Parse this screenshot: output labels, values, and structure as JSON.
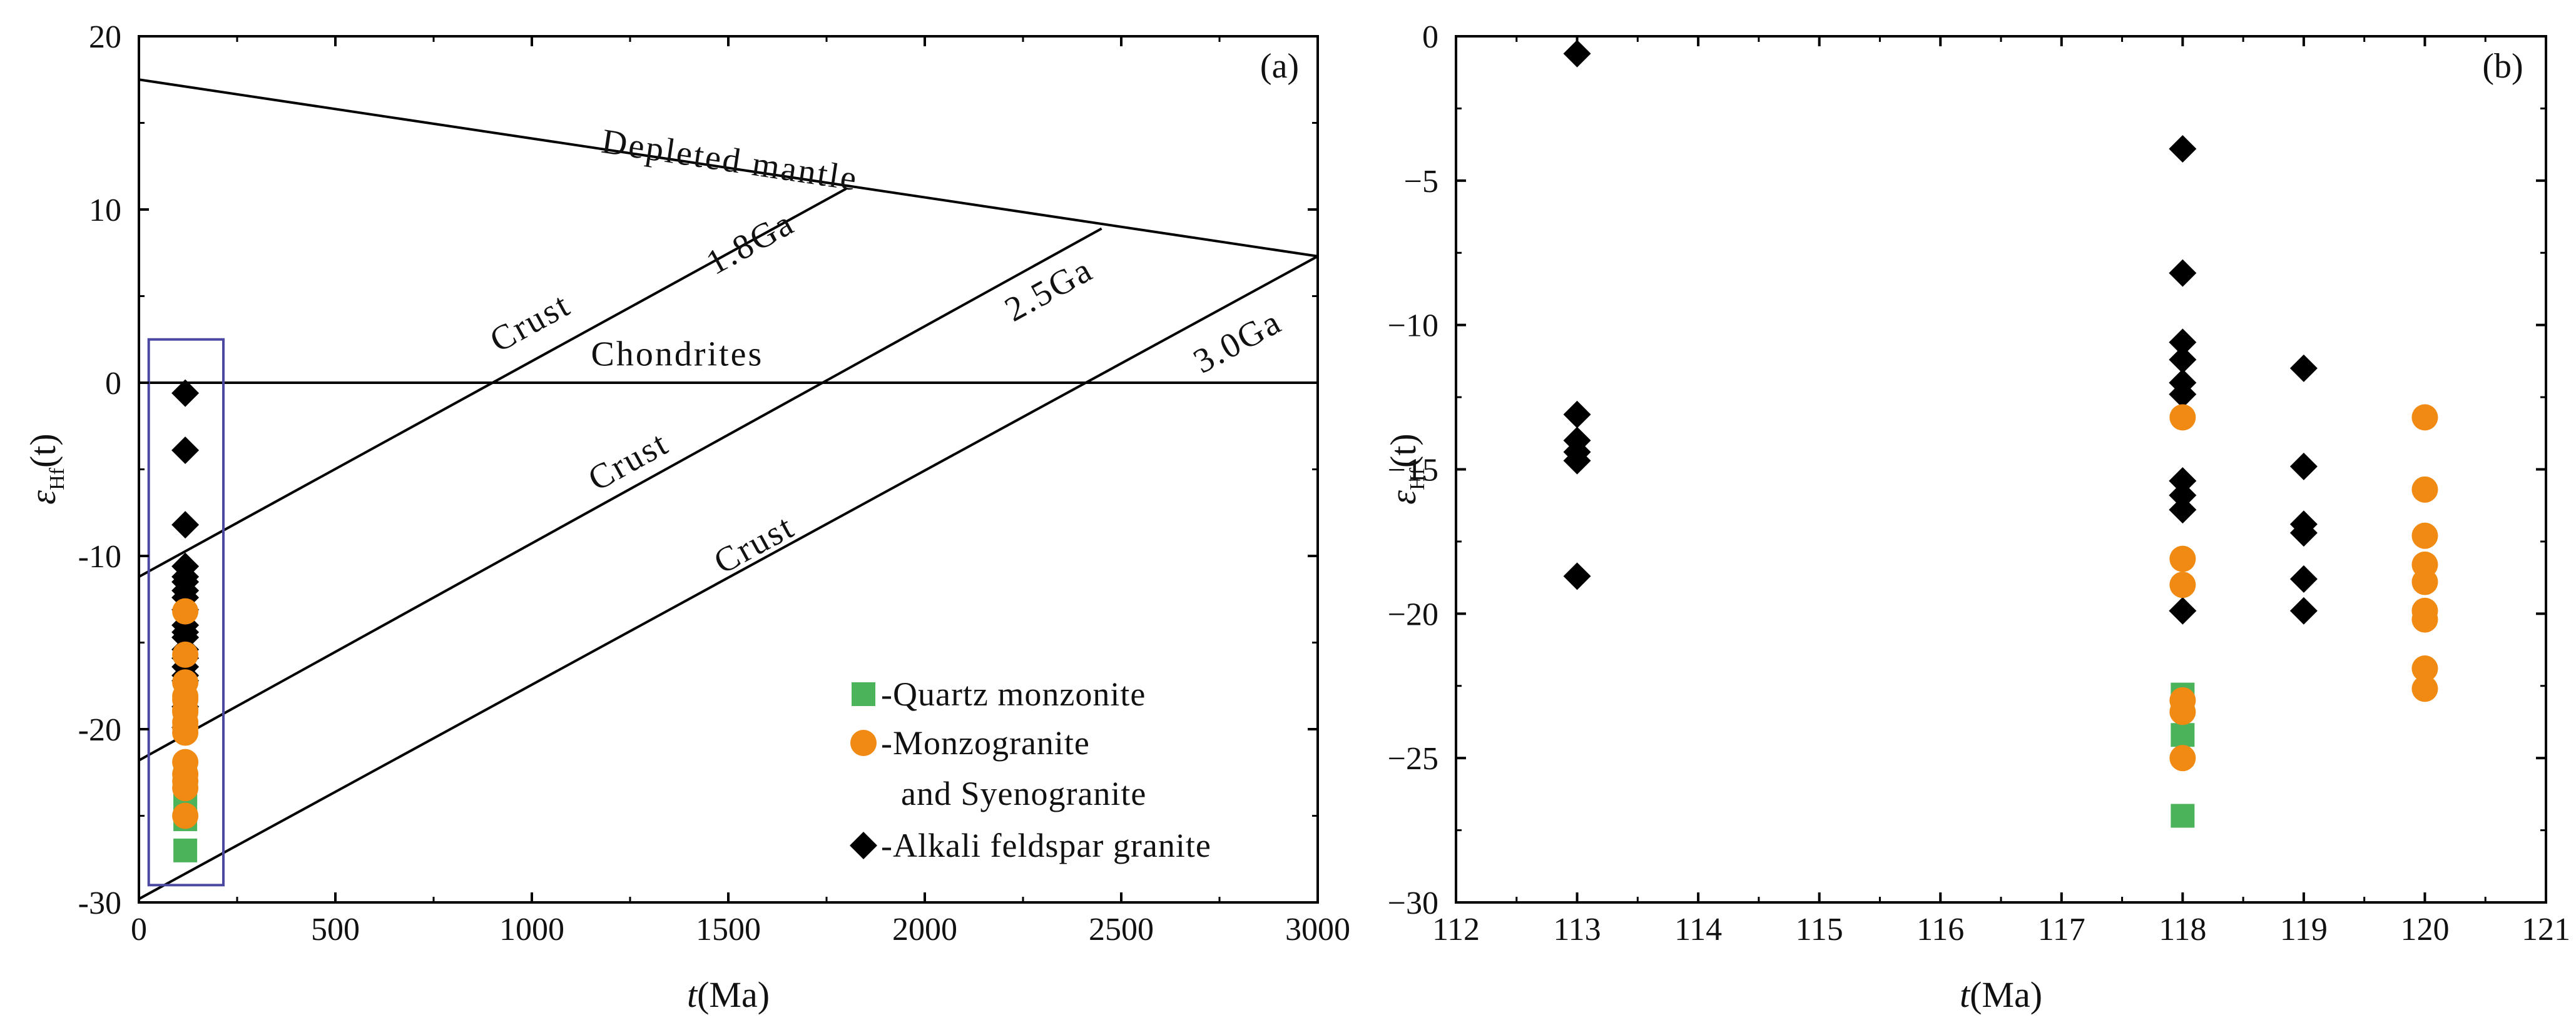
{
  "chart_data": [
    {
      "panel": "(a)",
      "type": "line",
      "xlabel_italic": "t",
      "xlabel_rest": "(Ma)",
      "ylabel_main": "ε",
      "ylabel_sub": "Hf",
      "ylabel_rest": "(t)",
      "xlim": [
        0,
        3000
      ],
      "ylim": [
        -30,
        20
      ],
      "xticks": [
        0,
        500,
        1000,
        1500,
        2000,
        2500,
        3000
      ],
      "yticks": [
        -30,
        -20,
        -10,
        0,
        10,
        20
      ],
      "reference_lines": [
        {
          "name": "Depleted mantle",
          "points": [
            [
              0,
              17.5
            ],
            [
              3000,
              7.3
            ]
          ]
        },
        {
          "name": "Chondrites",
          "points": [
            [
              0,
              0
            ],
            [
              3000,
              0
            ]
          ]
        },
        {
          "name": "1.8Ga crust",
          "points": [
            [
              0,
              -11.2
            ],
            [
              1800,
              11.2
            ]
          ]
        },
        {
          "name": "2.5Ga crust",
          "points": [
            [
              0,
              -21.8
            ],
            [
              2450,
              8.9
            ]
          ]
        },
        {
          "name": "3.0Ga crust",
          "points": [
            [
              0,
              -29.8
            ],
            [
              3000,
              7.3
            ]
          ]
        }
      ],
      "annotations": [
        {
          "text": "Depleted mantle",
          "x": 1500,
          "y": 12.2
        },
        {
          "text": "Chondrites",
          "x": 1370,
          "y": 1.0
        },
        {
          "text": "1.8Ga",
          "x": 1570,
          "y": 7.5
        },
        {
          "text": "2.5Ga",
          "x": 2330,
          "y": 4.8
        },
        {
          "text": "3.0Ga",
          "x": 2810,
          "y": 1.8
        },
        {
          "text": "Crust",
          "x": 1010,
          "y": 2.9
        },
        {
          "text": "Crust",
          "x": 1260,
          "y": -5.1
        },
        {
          "text": "Crust",
          "x": 1580,
          "y": -9.9
        }
      ],
      "highlight_box": {
        "x": [
          25,
          215
        ],
        "y": [
          -29,
          2.5
        ]
      },
      "series": [
        {
          "name": "Alkali feldspar granite",
          "marker": "diamond",
          "color": "#000000",
          "x": 118,
          "values": [
            -0.6,
            -3.9,
            -8.2,
            -10.6,
            -11.2,
            -11.5,
            -12.0,
            -12.4,
            -13.1,
            -14.0,
            -14.4,
            -14.7,
            -15.4,
            -15.9,
            -16.4,
            -16.9,
            -17.2,
            -18.7,
            -19.9
          ]
        },
        {
          "name": "Monzogranite and Syenogranite",
          "marker": "circle",
          "color": "#f08a12",
          "x": 118,
          "values": [
            -13.2,
            -15.7,
            -17.3,
            -18.1,
            -18.3,
            -18.9,
            -19.0,
            -19.6,
            -19.9,
            -20.2,
            -21.9,
            -22.6,
            -23.0,
            -23.4,
            -25.0
          ]
        },
        {
          "name": "Quartz monzonite",
          "marker": "square",
          "color": "#4bb35a",
          "x": 118,
          "values": [
            -22.8,
            -23.7,
            -24.2,
            -25.2,
            -27.0
          ]
        }
      ],
      "legend": [
        {
          "marker": "square",
          "color": "#4bb35a",
          "lines": [
            "-Quartz monzonite"
          ]
        },
        {
          "marker": "circle",
          "color": "#f08a12",
          "lines": [
            "-Monzogranite",
            "and Syenogranite"
          ]
        },
        {
          "marker": "diamond",
          "color": "#000000",
          "lines": [
            "-Alkali feldspar granite"
          ]
        }
      ]
    },
    {
      "panel": "(b)",
      "type": "scatter",
      "xlabel_italic": "t",
      "xlabel_rest": "(Ma)",
      "ylabel_main": "ε",
      "ylabel_sub": "Hf",
      "ylabel_rest": "(t)",
      "xlim": [
        112,
        121
      ],
      "ylim": [
        -30,
        0
      ],
      "xticks": [
        112,
        113,
        114,
        115,
        116,
        117,
        118,
        119,
        120,
        121
      ],
      "yticks": [
        -30,
        -25,
        -20,
        -15,
        -10,
        -5,
        0
      ],
      "series": [
        {
          "name": "Alkali feldspar granite",
          "marker": "diamond",
          "color": "#000000",
          "points": [
            [
              113,
              -0.6
            ],
            [
              113,
              -13.1
            ],
            [
              113,
              -14.0
            ],
            [
              113,
              -14.4
            ],
            [
              113,
              -14.7
            ],
            [
              113,
              -18.7
            ],
            [
              118,
              -3.9
            ],
            [
              118,
              -8.2
            ],
            [
              118,
              -10.6
            ],
            [
              118,
              -11.2
            ],
            [
              118,
              -12.0
            ],
            [
              118,
              -12.4
            ],
            [
              118,
              -15.4
            ],
            [
              118,
              -15.9
            ],
            [
              118,
              -16.4
            ],
            [
              118,
              -19.9
            ],
            [
              119,
              -11.5
            ],
            [
              119,
              -14.9
            ],
            [
              119,
              -16.9
            ],
            [
              119,
              -17.2
            ],
            [
              119,
              -18.8
            ],
            [
              119,
              -19.9
            ]
          ]
        },
        {
          "name": "Monzogranite and Syenogranite",
          "marker": "circle",
          "color": "#f08a12",
          "points": [
            [
              118,
              -13.2
            ],
            [
              118,
              -18.1
            ],
            [
              118,
              -19.0
            ],
            [
              118,
              -23.0
            ],
            [
              118,
              -23.4
            ],
            [
              118,
              -25.0
            ],
            [
              120,
              -13.2
            ],
            [
              120,
              -15.7
            ],
            [
              120,
              -17.3
            ],
            [
              120,
              -18.3
            ],
            [
              120,
              -18.9
            ],
            [
              120,
              -19.9
            ],
            [
              120,
              -20.2
            ],
            [
              120,
              -21.9
            ],
            [
              120,
              -22.6
            ]
          ]
        },
        {
          "name": "Quartz monzonite",
          "marker": "square",
          "color": "#4bb35a",
          "points": [
            [
              118,
              -22.8
            ],
            [
              118,
              -24.2
            ],
            [
              118,
              -27.0
            ]
          ]
        }
      ]
    }
  ]
}
